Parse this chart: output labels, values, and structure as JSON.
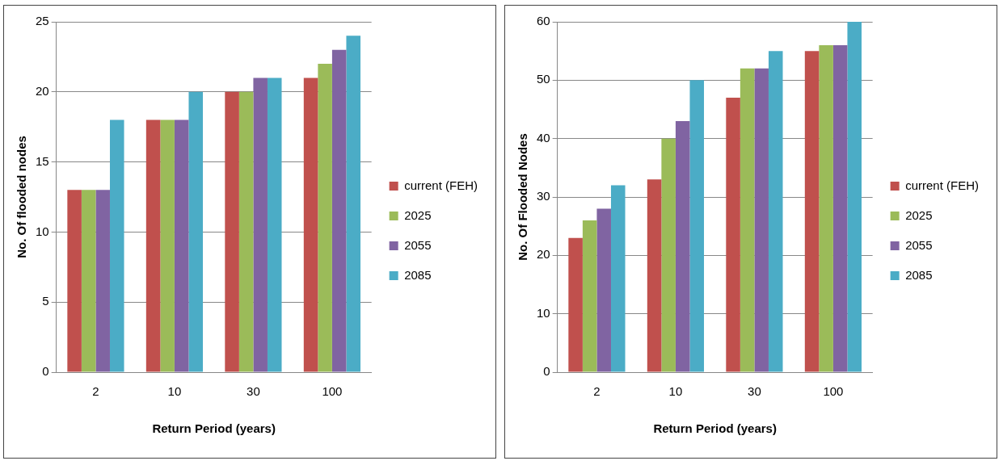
{
  "chart_data": [
    {
      "type": "bar",
      "xlabel": "Return Period (years)",
      "ylabel": "No. Of flooded nodes",
      "categories": [
        "2",
        "10",
        "30",
        "100"
      ],
      "ylim": [
        0,
        25
      ],
      "yticks": [
        0,
        5,
        10,
        15,
        20,
        25
      ],
      "grid": "y",
      "legend": "right",
      "series": [
        {
          "name": "current (FEH)",
          "color": "#c0504d",
          "values": [
            13,
            18,
            20,
            21
          ]
        },
        {
          "name": "2025",
          "color": "#9bbb59",
          "values": [
            13,
            18,
            20,
            22
          ]
        },
        {
          "name": "2055",
          "color": "#8064a2",
          "values": [
            13,
            18,
            21,
            23
          ]
        },
        {
          "name": "2085",
          "color": "#4bacc6",
          "values": [
            18,
            20,
            21,
            24
          ]
        }
      ]
    },
    {
      "type": "bar",
      "xlabel": "Return Period (years)",
      "ylabel": "No. Of Flooded Nodes",
      "categories": [
        "2",
        "10",
        "30",
        "100"
      ],
      "ylim": [
        0,
        60
      ],
      "yticks": [
        0,
        10,
        20,
        30,
        40,
        50,
        60
      ],
      "grid": "y",
      "legend": "right",
      "series": [
        {
          "name": "current (FEH)",
          "color": "#c0504d",
          "values": [
            23,
            33,
            47,
            55
          ]
        },
        {
          "name": "2025",
          "color": "#9bbb59",
          "values": [
            26,
            40,
            52,
            56
          ]
        },
        {
          "name": "2055",
          "color": "#8064a2",
          "values": [
            28,
            43,
            52,
            56
          ]
        },
        {
          "name": "2085",
          "color": "#4bacc6",
          "values": [
            32,
            50,
            55,
            60
          ]
        }
      ]
    }
  ]
}
